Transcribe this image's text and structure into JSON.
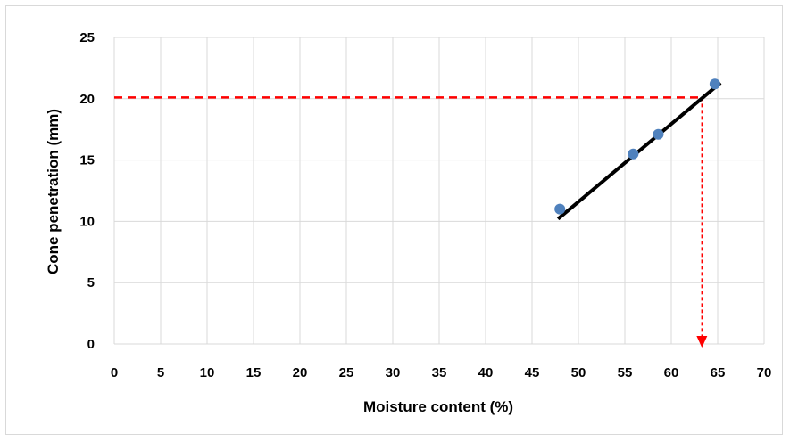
{
  "chart_data": {
    "type": "scatter",
    "title": "",
    "xlabel": "Moisture content (%)",
    "ylabel": "Cone penetration (mm)",
    "xlim": [
      0,
      70
    ],
    "ylim": [
      0,
      25
    ],
    "x_ticks": [
      0,
      5,
      10,
      15,
      20,
      25,
      30,
      35,
      40,
      45,
      50,
      55,
      60,
      65,
      70
    ],
    "y_ticks": [
      0,
      5,
      10,
      15,
      20,
      25
    ],
    "grid": true,
    "legend": "none",
    "series": [
      {
        "points": [
          {
            "x": 48.0,
            "y": 11.0
          },
          {
            "x": 55.9,
            "y": 15.5
          },
          {
            "x": 58.6,
            "y": 17.1
          },
          {
            "x": 64.7,
            "y": 21.2
          }
        ],
        "color": "#4f81bd"
      }
    ],
    "trendline": {
      "x": [
        47.8,
        65.3
      ],
      "y": [
        10.2,
        21.3
      ],
      "color": "#000000"
    },
    "reference_lines": {
      "horizontal": {
        "y": 20.1,
        "x_from": 0,
        "x_to": 63.3,
        "color": "#ff0000",
        "style": "dashed"
      },
      "vertical": {
        "x": 63.3,
        "y_from": 20.1,
        "y_to": 0,
        "color": "#ff0000",
        "style": "dashed",
        "arrow": true
      }
    }
  }
}
